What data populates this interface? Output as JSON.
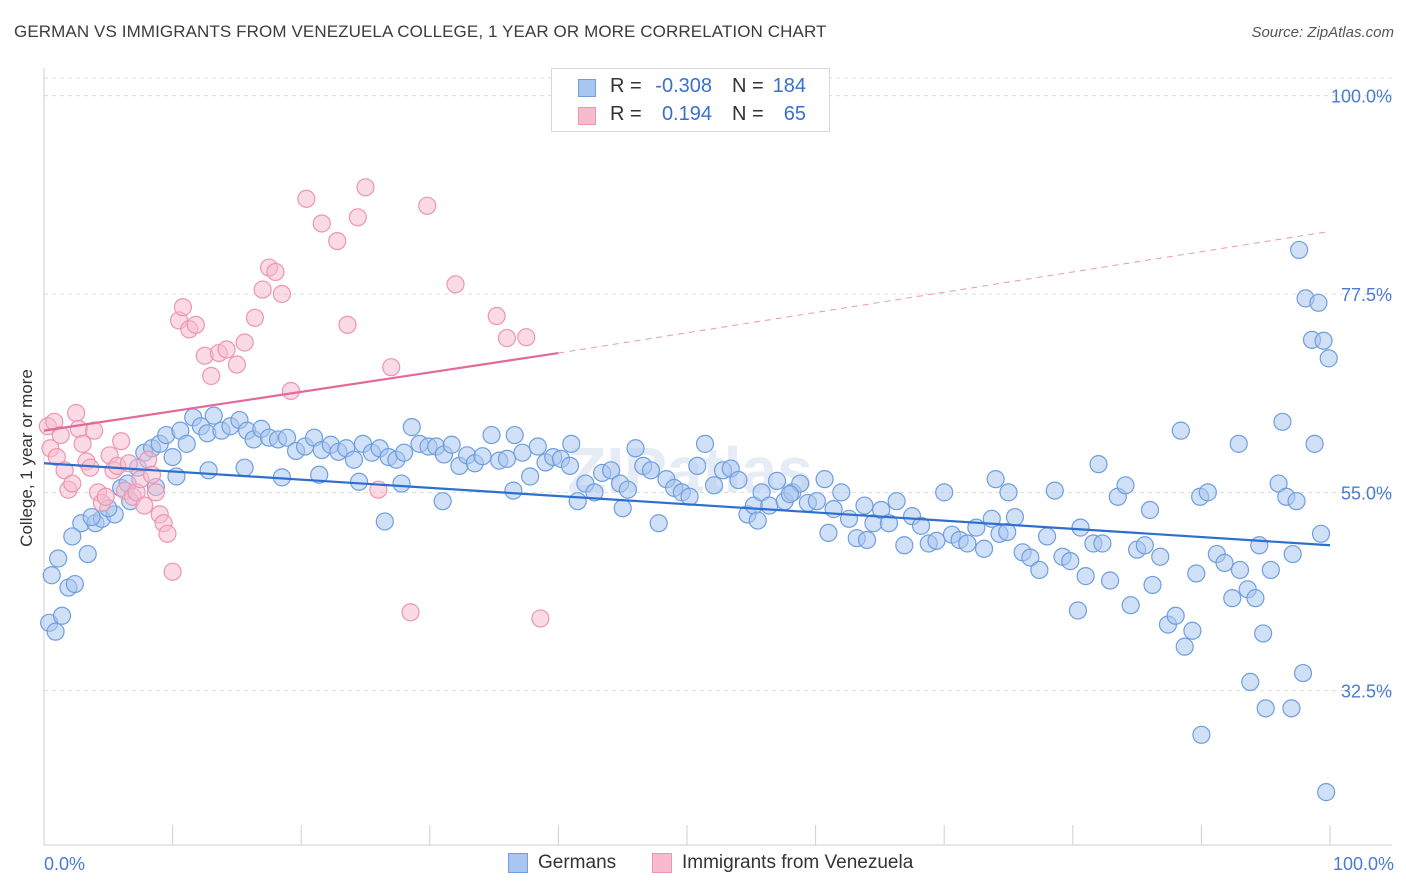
{
  "title": "GERMAN VS IMMIGRANTS FROM VENEZUELA COLLEGE, 1 YEAR OR MORE CORRELATION CHART",
  "source": "Source: ZipAtlas.com",
  "watermark": "ZIPatlas",
  "colors": {
    "blue_fill": "#a9c6ee",
    "blue_stroke": "#6f9ee0",
    "blue_line": "#2d6fcf",
    "pink_fill": "#f6bccd",
    "pink_stroke": "#ee95b1",
    "pink_line": "#e2699a",
    "axis_label": "#4a7bd0"
  },
  "legend": {
    "rows": [
      {
        "r_label": "R =",
        "r_value": "-0.308",
        "n_label": "N =",
        "n_value": "184"
      },
      {
        "r_label": "R =",
        "r_value": "0.194",
        "n_label": "N =",
        "n_value": "65"
      }
    ]
  },
  "bottom_legend": {
    "germans": "Germans",
    "venezuela": "Immigrants from Venezuela"
  },
  "chart_data": {
    "type": "scatter",
    "ylabel": "College, 1 year or more",
    "xlim": [
      0,
      100
    ],
    "ylim": [
      15,
      102
    ],
    "y_ticks": [
      {
        "value": 100,
        "label": "100.0%"
      },
      {
        "value": 77.5,
        "label": "77.5%"
      },
      {
        "value": 55,
        "label": "55.0%"
      },
      {
        "value": 32.5,
        "label": "32.5%"
      }
    ],
    "x_tick_labels": [
      {
        "value": 0,
        "label": "0.0%"
      },
      {
        "value": 100,
        "label": "100.0%"
      }
    ],
    "grid": "horizontal dashed",
    "legend_position": "top-center",
    "series": [
      {
        "name": "Germans",
        "r": -0.308,
        "n": 184,
        "trend": {
          "x0": 0,
          "y0": 58.3,
          "x1": 100,
          "y1": 49.0
        },
        "points": [
          [
            0.4,
            40.2
          ],
          [
            0.9,
            39.2
          ],
          [
            1.4,
            41.0
          ],
          [
            1.9,
            44.2
          ],
          [
            2.4,
            44.6
          ],
          [
            2.9,
            51.5
          ],
          [
            3.4,
            48.0
          ],
          [
            4.0,
            51.5
          ],
          [
            4.5,
            52.0
          ],
          [
            5.5,
            52.5
          ],
          [
            6.0,
            55.5
          ],
          [
            6.5,
            56.0
          ],
          [
            7.3,
            57.8
          ],
          [
            7.8,
            59.5
          ],
          [
            8.4,
            60.0
          ],
          [
            9.0,
            60.5
          ],
          [
            9.5,
            61.5
          ],
          [
            10.0,
            59.0
          ],
          [
            10.6,
            62.0
          ],
          [
            11.1,
            60.5
          ],
          [
            11.6,
            63.5
          ],
          [
            12.2,
            62.5
          ],
          [
            12.7,
            61.7
          ],
          [
            13.2,
            63.7
          ],
          [
            13.8,
            62.0
          ],
          [
            14.5,
            62.5
          ],
          [
            15.2,
            63.2
          ],
          [
            15.8,
            62.0
          ],
          [
            16.3,
            61.0
          ],
          [
            16.9,
            62.2
          ],
          [
            17.5,
            61.2
          ],
          [
            18.2,
            61.0
          ],
          [
            18.9,
            61.2
          ],
          [
            19.6,
            59.7
          ],
          [
            20.3,
            60.2
          ],
          [
            21.0,
            61.2
          ],
          [
            21.6,
            59.8
          ],
          [
            22.3,
            60.4
          ],
          [
            22.9,
            59.6
          ],
          [
            23.5,
            60.0
          ],
          [
            24.1,
            58.7
          ],
          [
            24.8,
            60.5
          ],
          [
            25.5,
            59.5
          ],
          [
            26.1,
            60.0
          ],
          [
            26.8,
            59.0
          ],
          [
            27.4,
            58.7
          ],
          [
            28.0,
            59.5
          ],
          [
            28.6,
            62.4
          ],
          [
            29.2,
            60.5
          ],
          [
            29.9,
            60.2
          ],
          [
            30.5,
            60.2
          ],
          [
            31.1,
            59.3
          ],
          [
            31.7,
            60.4
          ],
          [
            32.3,
            58.0
          ],
          [
            32.9,
            59.2
          ],
          [
            33.5,
            58.3
          ],
          [
            34.1,
            59.1
          ],
          [
            34.8,
            61.5
          ],
          [
            35.4,
            58.6
          ],
          [
            36.0,
            58.8
          ],
          [
            36.6,
            61.5
          ],
          [
            37.2,
            59.5
          ],
          [
            37.8,
            56.8
          ],
          [
            38.4,
            60.2
          ],
          [
            39.0,
            58.4
          ],
          [
            39.6,
            59.0
          ],
          [
            40.2,
            58.8
          ],
          [
            40.9,
            58.0
          ],
          [
            41.5,
            54.0
          ],
          [
            42.1,
            56.0
          ],
          [
            42.8,
            55.0
          ],
          [
            43.4,
            57.2
          ],
          [
            44.1,
            57.5
          ],
          [
            44.8,
            56.0
          ],
          [
            45.4,
            55.3
          ],
          [
            46.0,
            60.0
          ],
          [
            46.6,
            58.0
          ],
          [
            47.2,
            57.5
          ],
          [
            47.8,
            51.5
          ],
          [
            48.4,
            56.5
          ],
          [
            49.0,
            55.5
          ],
          [
            49.6,
            55.0
          ],
          [
            50.2,
            54.5
          ],
          [
            50.8,
            58.0
          ],
          [
            51.4,
            60.5
          ],
          [
            52.1,
            55.8
          ],
          [
            52.8,
            57.5
          ],
          [
            53.4,
            57.7
          ],
          [
            54.0,
            56.4
          ],
          [
            54.7,
            52.5
          ],
          [
            55.2,
            53.5
          ],
          [
            55.8,
            55.0
          ],
          [
            56.4,
            53.5
          ],
          [
            57.0,
            56.3
          ],
          [
            57.6,
            54.0
          ],
          [
            58.2,
            55.0
          ],
          [
            58.8,
            56.0
          ],
          [
            59.4,
            53.8
          ],
          [
            60.1,
            54.0
          ],
          [
            60.7,
            56.5
          ],
          [
            61.4,
            53.1
          ],
          [
            62.0,
            55.0
          ],
          [
            62.6,
            52.0
          ],
          [
            63.2,
            49.8
          ],
          [
            63.8,
            53.5
          ],
          [
            64.5,
            51.5
          ],
          [
            65.1,
            53.0
          ],
          [
            65.7,
            51.5
          ],
          [
            66.3,
            54.0
          ],
          [
            66.9,
            49.0
          ],
          [
            67.5,
            52.3
          ],
          [
            68.2,
            51.2
          ],
          [
            68.8,
            49.2
          ],
          [
            69.4,
            49.5
          ],
          [
            70.0,
            55.0
          ],
          [
            70.6,
            50.2
          ],
          [
            71.2,
            49.6
          ],
          [
            71.8,
            49.2
          ],
          [
            72.5,
            51.0
          ],
          [
            73.1,
            48.6
          ],
          [
            73.7,
            52.0
          ],
          [
            74.3,
            50.3
          ],
          [
            74.9,
            50.5
          ],
          [
            75.5,
            52.2
          ],
          [
            76.1,
            48.2
          ],
          [
            76.7,
            47.6
          ],
          [
            77.4,
            46.2
          ],
          [
            78.0,
            50.0
          ],
          [
            78.6,
            55.2
          ],
          [
            79.2,
            47.7
          ],
          [
            79.8,
            47.2
          ],
          [
            80.4,
            41.6
          ],
          [
            81.0,
            45.5
          ],
          [
            81.6,
            49.2
          ],
          [
            82.3,
            49.2
          ],
          [
            82.9,
            45.0
          ],
          [
            83.5,
            54.5
          ],
          [
            84.1,
            55.8
          ],
          [
            85.0,
            48.5
          ],
          [
            85.6,
            49.0
          ],
          [
            86.2,
            44.5
          ],
          [
            86.8,
            47.7
          ],
          [
            87.4,
            40.0
          ],
          [
            88.0,
            41.0
          ],
          [
            88.7,
            37.5
          ],
          [
            89.3,
            39.3
          ],
          [
            89.9,
            54.5
          ],
          [
            90.5,
            55.0
          ],
          [
            91.2,
            48.0
          ],
          [
            91.8,
            47.0
          ],
          [
            92.4,
            43.0
          ],
          [
            93.0,
            46.2
          ],
          [
            93.6,
            44.0
          ],
          [
            94.2,
            43.0
          ],
          [
            94.8,
            39.0
          ],
          [
            95.4,
            46.2
          ],
          [
            96.0,
            56.0
          ],
          [
            96.6,
            54.5
          ],
          [
            97.1,
            48.0
          ],
          [
            97.6,
            82.5
          ],
          [
            98.1,
            77.0
          ],
          [
            98.6,
            72.3
          ],
          [
            99.1,
            76.5
          ],
          [
            99.5,
            72.2
          ],
          [
            99.9,
            70.2
          ],
          [
            74.0,
            56.5
          ],
          [
            84.5,
            42.2
          ],
          [
            93.8,
            33.5
          ],
          [
            95.0,
            30.5
          ],
          [
            97.0,
            30.5
          ],
          [
            96.3,
            63.0
          ],
          [
            98.8,
            60.5
          ],
          [
            97.4,
            54.0
          ],
          [
            99.3,
            50.3
          ],
          [
            92.9,
            60.5
          ],
          [
            90.0,
            27.5
          ],
          [
            82.0,
            58.2
          ],
          [
            86.0,
            53.0
          ],
          [
            88.4,
            62.0
          ],
          [
            80.6,
            51.0
          ],
          [
            64.0,
            49.6
          ],
          [
            75.0,
            55.0
          ],
          [
            61.0,
            50.4
          ],
          [
            58.0,
            54.8
          ],
          [
            45.0,
            53.2
          ],
          [
            41.0,
            60.5
          ],
          [
            36.5,
            55.2
          ],
          [
            31.0,
            54.0
          ],
          [
            27.8,
            56.0
          ],
          [
            24.5,
            56.2
          ],
          [
            21.4,
            57.0
          ],
          [
            18.5,
            56.7
          ],
          [
            15.6,
            57.8
          ],
          [
            12.8,
            57.5
          ],
          [
            10.3,
            56.8
          ],
          [
            8.7,
            55.6
          ],
          [
            6.7,
            54.0
          ],
          [
            5.0,
            53.2
          ],
          [
            3.7,
            52.2
          ],
          [
            2.2,
            50.0
          ],
          [
            1.1,
            47.5
          ],
          [
            0.6,
            45.6
          ],
          [
            26.5,
            51.7
          ],
          [
            55.5,
            51.8
          ],
          [
            97.9,
            34.5
          ],
          [
            99.7,
            21.0
          ],
          [
            94.5,
            49.0
          ],
          [
            89.6,
            45.8
          ]
        ]
      },
      {
        "name": "Immigrants from Venezuela",
        "r": 0.194,
        "n": 65,
        "trend": {
          "x0": 0,
          "y0": 62.0,
          "x1": 40,
          "y1": 70.8
        },
        "trend_dashed": {
          "x0": 40,
          "y0": 70.8,
          "x1": 100,
          "y1": 84.6
        },
        "points": [
          [
            0.3,
            62.5
          ],
          [
            0.5,
            60.0
          ],
          [
            0.8,
            63.0
          ],
          [
            1.0,
            59.0
          ],
          [
            1.3,
            61.5
          ],
          [
            1.6,
            57.5
          ],
          [
            1.9,
            55.3
          ],
          [
            2.2,
            56.0
          ],
          [
            2.5,
            64.0
          ],
          [
            2.7,
            62.2
          ],
          [
            3.0,
            60.5
          ],
          [
            3.3,
            58.5
          ],
          [
            3.6,
            57.8
          ],
          [
            3.9,
            62.0
          ],
          [
            4.2,
            55.0
          ],
          [
            4.5,
            53.8
          ],
          [
            4.8,
            54.5
          ],
          [
            5.1,
            59.2
          ],
          [
            5.4,
            57.5
          ],
          [
            5.7,
            58.0
          ],
          [
            6.0,
            60.8
          ],
          [
            6.3,
            55.2
          ],
          [
            6.6,
            58.3
          ],
          [
            6.9,
            54.5
          ],
          [
            7.2,
            55.0
          ],
          [
            7.5,
            56.5
          ],
          [
            7.8,
            53.5
          ],
          [
            8.1,
            58.7
          ],
          [
            8.4,
            57.0
          ],
          [
            8.7,
            55.0
          ],
          [
            9.0,
            52.5
          ],
          [
            9.3,
            51.5
          ],
          [
            9.6,
            50.3
          ],
          [
            10.0,
            46.0
          ],
          [
            10.5,
            74.5
          ],
          [
            10.8,
            76.0
          ],
          [
            11.3,
            73.5
          ],
          [
            11.8,
            74.0
          ],
          [
            12.5,
            70.5
          ],
          [
            13.0,
            68.2
          ],
          [
            13.6,
            70.8
          ],
          [
            14.2,
            71.2
          ],
          [
            15.0,
            69.5
          ],
          [
            15.6,
            72.0
          ],
          [
            16.4,
            74.8
          ],
          [
            17.0,
            78.0
          ],
          [
            17.5,
            80.5
          ],
          [
            18.0,
            80.0
          ],
          [
            18.5,
            77.5
          ],
          [
            19.2,
            66.5
          ],
          [
            20.4,
            88.3
          ],
          [
            21.6,
            85.5
          ],
          [
            22.8,
            83.5
          ],
          [
            23.6,
            74.0
          ],
          [
            24.4,
            86.2
          ],
          [
            25.0,
            89.6
          ],
          [
            26.0,
            55.3
          ],
          [
            27.0,
            69.2
          ],
          [
            28.5,
            41.4
          ],
          [
            29.8,
            87.5
          ],
          [
            32.0,
            78.6
          ],
          [
            35.2,
            75.0
          ],
          [
            36.0,
            72.5
          ],
          [
            37.5,
            72.6
          ],
          [
            38.6,
            40.7
          ]
        ]
      }
    ]
  }
}
